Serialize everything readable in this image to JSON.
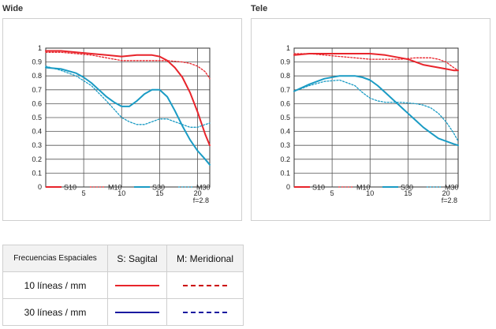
{
  "chart_data": [
    {
      "type": "line",
      "title": "Wide",
      "note": "f=2.8",
      "xlim": [
        0,
        21.6
      ],
      "ylim": [
        0,
        1
      ],
      "x_ticks": [
        5,
        10,
        15,
        20
      ],
      "y_ticks": [
        0,
        0.1,
        0.2,
        0.3,
        0.4,
        0.5,
        0.6,
        0.7,
        0.8,
        0.9,
        1
      ],
      "y_tick_labels": [
        "0",
        "0.1",
        "0.2",
        "0.3",
        "0.4",
        "0.5",
        "0.6",
        "0.7",
        "0.8",
        "0.9",
        "1"
      ],
      "grid": true,
      "legend_position": "bottom",
      "series": [
        {
          "name": "S10",
          "color": "#e8242b",
          "dashed": false,
          "x": [
            0,
            2,
            4,
            6,
            8,
            10,
            12,
            14,
            15,
            16,
            17,
            18,
            19,
            20,
            21,
            21.6
          ],
          "y": [
            0.98,
            0.98,
            0.97,
            0.96,
            0.95,
            0.94,
            0.95,
            0.95,
            0.94,
            0.91,
            0.86,
            0.79,
            0.68,
            0.54,
            0.38,
            0.3
          ]
        },
        {
          "name": "M10",
          "color": "#e8242b",
          "dashed": true,
          "x": [
            0,
            2,
            4,
            6,
            8,
            10,
            12,
            14,
            16,
            18,
            19,
            20,
            21,
            21.6
          ],
          "y": [
            0.97,
            0.97,
            0.96,
            0.95,
            0.93,
            0.91,
            0.91,
            0.91,
            0.91,
            0.9,
            0.89,
            0.87,
            0.83,
            0.78
          ]
        },
        {
          "name": "S30",
          "color": "#1a9bc4",
          "dashed": false,
          "x": [
            0,
            2,
            4,
            5,
            6,
            7,
            8,
            9,
            10,
            11,
            12,
            13,
            14,
            15,
            16,
            17,
            18,
            19,
            20,
            21,
            21.6
          ],
          "y": [
            0.86,
            0.85,
            0.82,
            0.79,
            0.75,
            0.7,
            0.65,
            0.61,
            0.58,
            0.58,
            0.62,
            0.67,
            0.7,
            0.7,
            0.65,
            0.55,
            0.44,
            0.34,
            0.26,
            0.2,
            0.16
          ]
        },
        {
          "name": "M30",
          "color": "#1a9bc4",
          "dashed": true,
          "x": [
            0,
            2,
            4,
            6,
            8,
            10,
            11,
            12,
            13,
            14,
            15,
            16,
            17,
            18,
            19,
            20,
            21,
            21.6
          ],
          "y": [
            0.87,
            0.84,
            0.8,
            0.73,
            0.62,
            0.5,
            0.47,
            0.45,
            0.45,
            0.47,
            0.49,
            0.49,
            0.47,
            0.45,
            0.43,
            0.43,
            0.45,
            0.46
          ]
        }
      ]
    },
    {
      "type": "line",
      "title": "Tele",
      "note": "f=2.8",
      "xlim": [
        0,
        21.6
      ],
      "ylim": [
        0,
        1
      ],
      "x_ticks": [
        5,
        10,
        15,
        20
      ],
      "y_ticks": [
        0,
        0.1,
        0.2,
        0.3,
        0.4,
        0.5,
        0.6,
        0.7,
        0.8,
        0.9,
        1
      ],
      "y_tick_labels": [
        "0",
        "0.1",
        "0.2",
        "0.3",
        "0.4",
        "0.5",
        "0.6",
        "0.7",
        "0.8",
        "0.9",
        "1"
      ],
      "grid": true,
      "legend_position": "bottom",
      "series": [
        {
          "name": "S10",
          "color": "#e8242b",
          "dashed": false,
          "x": [
            0,
            2,
            4,
            6,
            8,
            10,
            12,
            14,
            15,
            16,
            17,
            18,
            19,
            20,
            21,
            21.6
          ],
          "y": [
            0.95,
            0.96,
            0.96,
            0.96,
            0.96,
            0.96,
            0.95,
            0.93,
            0.92,
            0.9,
            0.88,
            0.87,
            0.86,
            0.85,
            0.84,
            0.84
          ]
        },
        {
          "name": "M10",
          "color": "#e8242b",
          "dashed": true,
          "x": [
            0,
            2,
            4,
            6,
            8,
            10,
            12,
            14,
            16,
            17,
            18,
            19,
            20,
            21,
            21.6
          ],
          "y": [
            0.96,
            0.96,
            0.95,
            0.94,
            0.93,
            0.92,
            0.92,
            0.92,
            0.93,
            0.93,
            0.93,
            0.92,
            0.9,
            0.86,
            0.84
          ]
        },
        {
          "name": "S30",
          "color": "#1a9bc4",
          "dashed": false,
          "x": [
            0,
            2,
            4,
            6,
            8,
            9,
            10,
            11,
            12,
            13,
            14,
            15,
            16,
            17,
            18,
            19,
            20,
            21,
            21.6
          ],
          "y": [
            0.69,
            0.74,
            0.78,
            0.8,
            0.8,
            0.79,
            0.77,
            0.73,
            0.68,
            0.63,
            0.58,
            0.53,
            0.48,
            0.43,
            0.39,
            0.35,
            0.33,
            0.31,
            0.3
          ]
        },
        {
          "name": "M30",
          "color": "#1a9bc4",
          "dashed": true,
          "x": [
            0,
            2,
            4,
            6,
            8,
            9,
            10,
            11,
            12,
            14,
            16,
            17,
            18,
            19,
            20,
            21,
            21.6
          ],
          "y": [
            0.69,
            0.73,
            0.76,
            0.77,
            0.73,
            0.68,
            0.64,
            0.62,
            0.61,
            0.61,
            0.6,
            0.59,
            0.57,
            0.53,
            0.47,
            0.39,
            0.33
          ]
        }
      ]
    }
  ],
  "legend_table": {
    "headers": [
      "Frecuencias Espaciales",
      "S: Sagital",
      "M: Meridional"
    ],
    "rows": [
      {
        "label": "10 líneas / mm",
        "sagital_color": "#e8242b",
        "meridional_color": "#cc0000"
      },
      {
        "label": "30 líneas / mm",
        "sagital_color": "#1a1aa0",
        "meridional_color": "#1a1aa0"
      }
    ]
  }
}
